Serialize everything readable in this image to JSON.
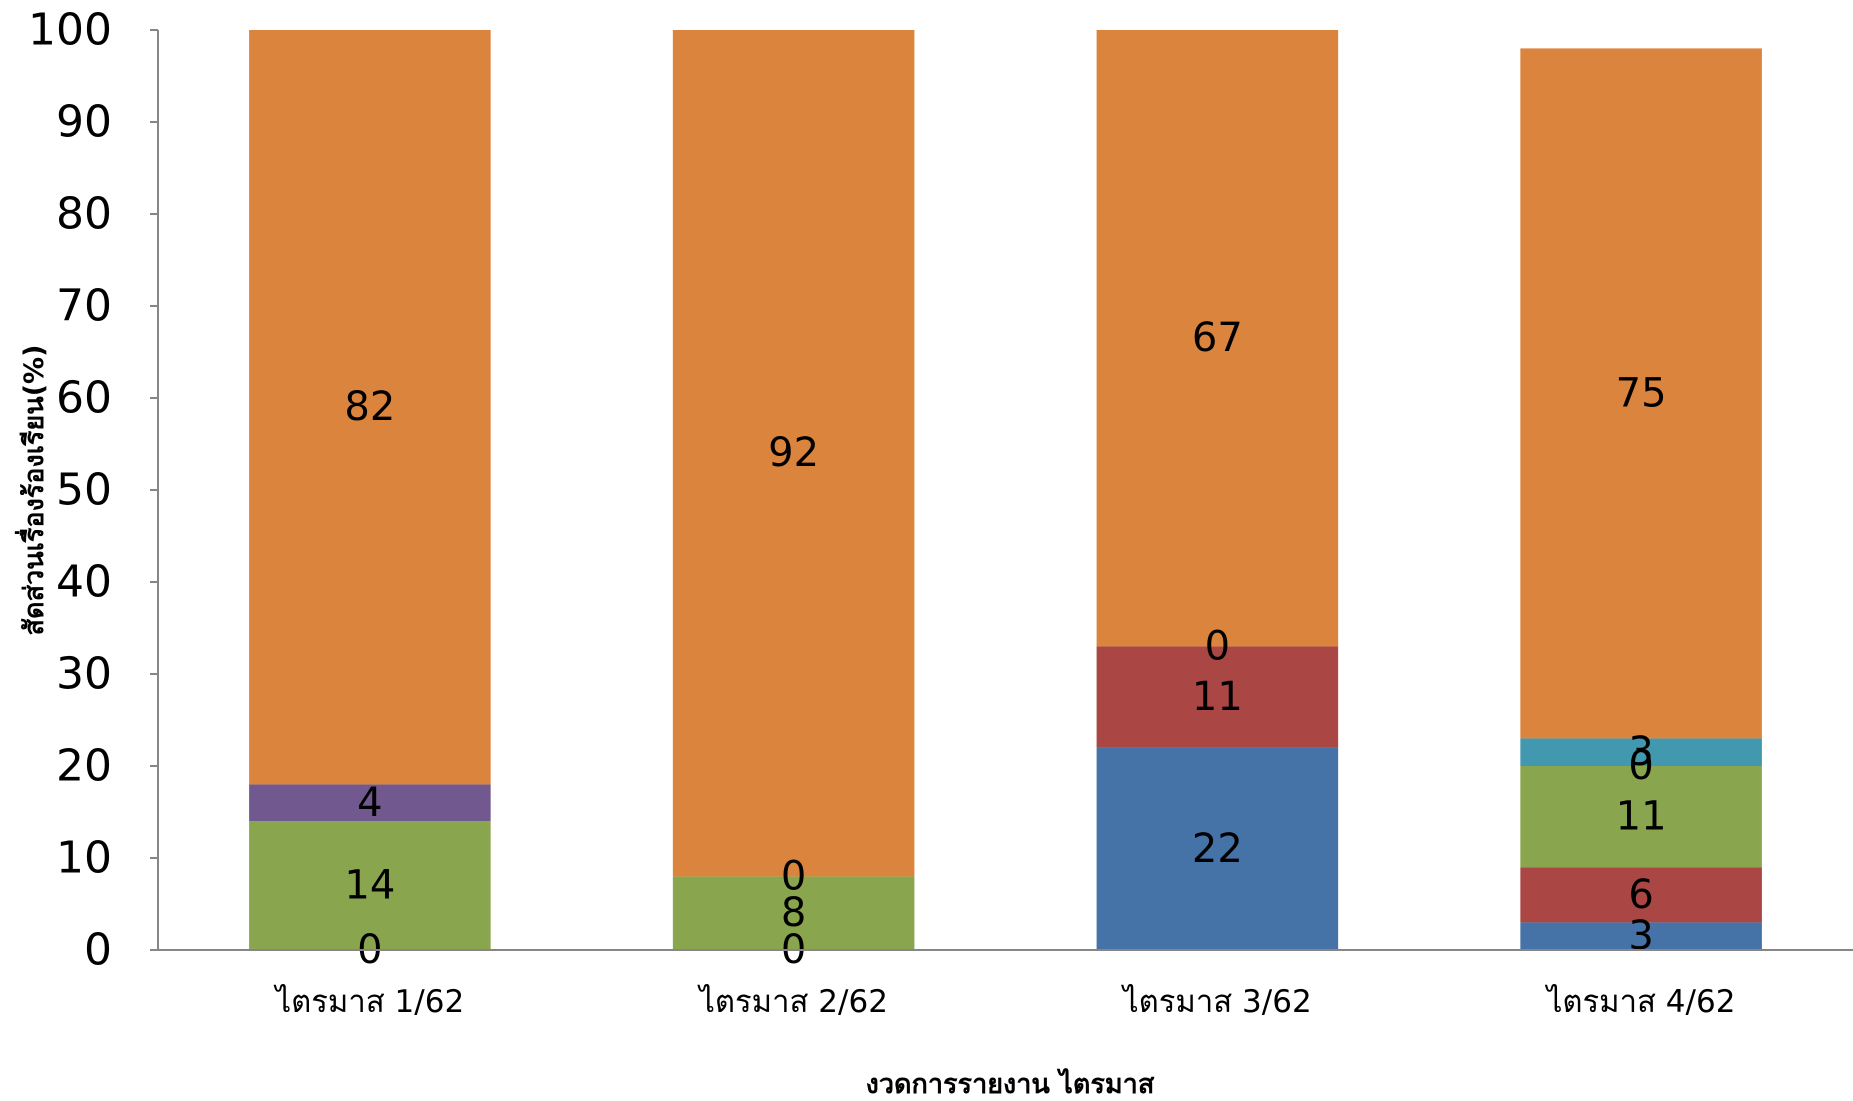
{
  "chart_data": {
    "type": "bar",
    "stacked": true,
    "title": "",
    "xlabel": "งวดการรายงาน ไตรมาส",
    "ylabel": "สัดส่วนเรื่องร้องเรียน(%)",
    "ylim": [
      0,
      100
    ],
    "yticks": [
      "0",
      "10",
      "20",
      "30",
      "40",
      "50",
      "60",
      "70",
      "80",
      "90",
      "100"
    ],
    "grid": false,
    "legend": "none",
    "categories": [
      "ไตรมาส 1/62",
      "ไตรมาส 2/62",
      "ไตรมาส 3/62",
      "ไตรมาส 4/62"
    ],
    "series": [
      {
        "color": "#4572A7",
        "values": [
          0,
          0,
          22,
          3
        ],
        "labels": [
          "0",
          "0",
          "22",
          "3"
        ]
      },
      {
        "color": "#AA4643",
        "values": [
          0,
          0,
          11,
          6
        ],
        "labels": [
          "",
          "",
          "11",
          "6"
        ]
      },
      {
        "color": "#89A54E",
        "values": [
          14,
          8,
          0,
          11
        ],
        "labels": [
          "14",
          "8",
          "",
          "11"
        ]
      },
      {
        "color": "#71588F",
        "values": [
          4,
          0,
          0,
          0
        ],
        "labels": [
          "4",
          "0",
          "0",
          "0"
        ]
      },
      {
        "color": "#4198AF",
        "values": [
          0,
          0,
          0,
          3
        ],
        "labels": [
          "",
          "",
          "",
          "3"
        ]
      },
      {
        "color": "#DB843D",
        "values": [
          82,
          92,
          67,
          75
        ],
        "labels": [
          "82",
          "92",
          "67",
          "75"
        ]
      }
    ]
  }
}
